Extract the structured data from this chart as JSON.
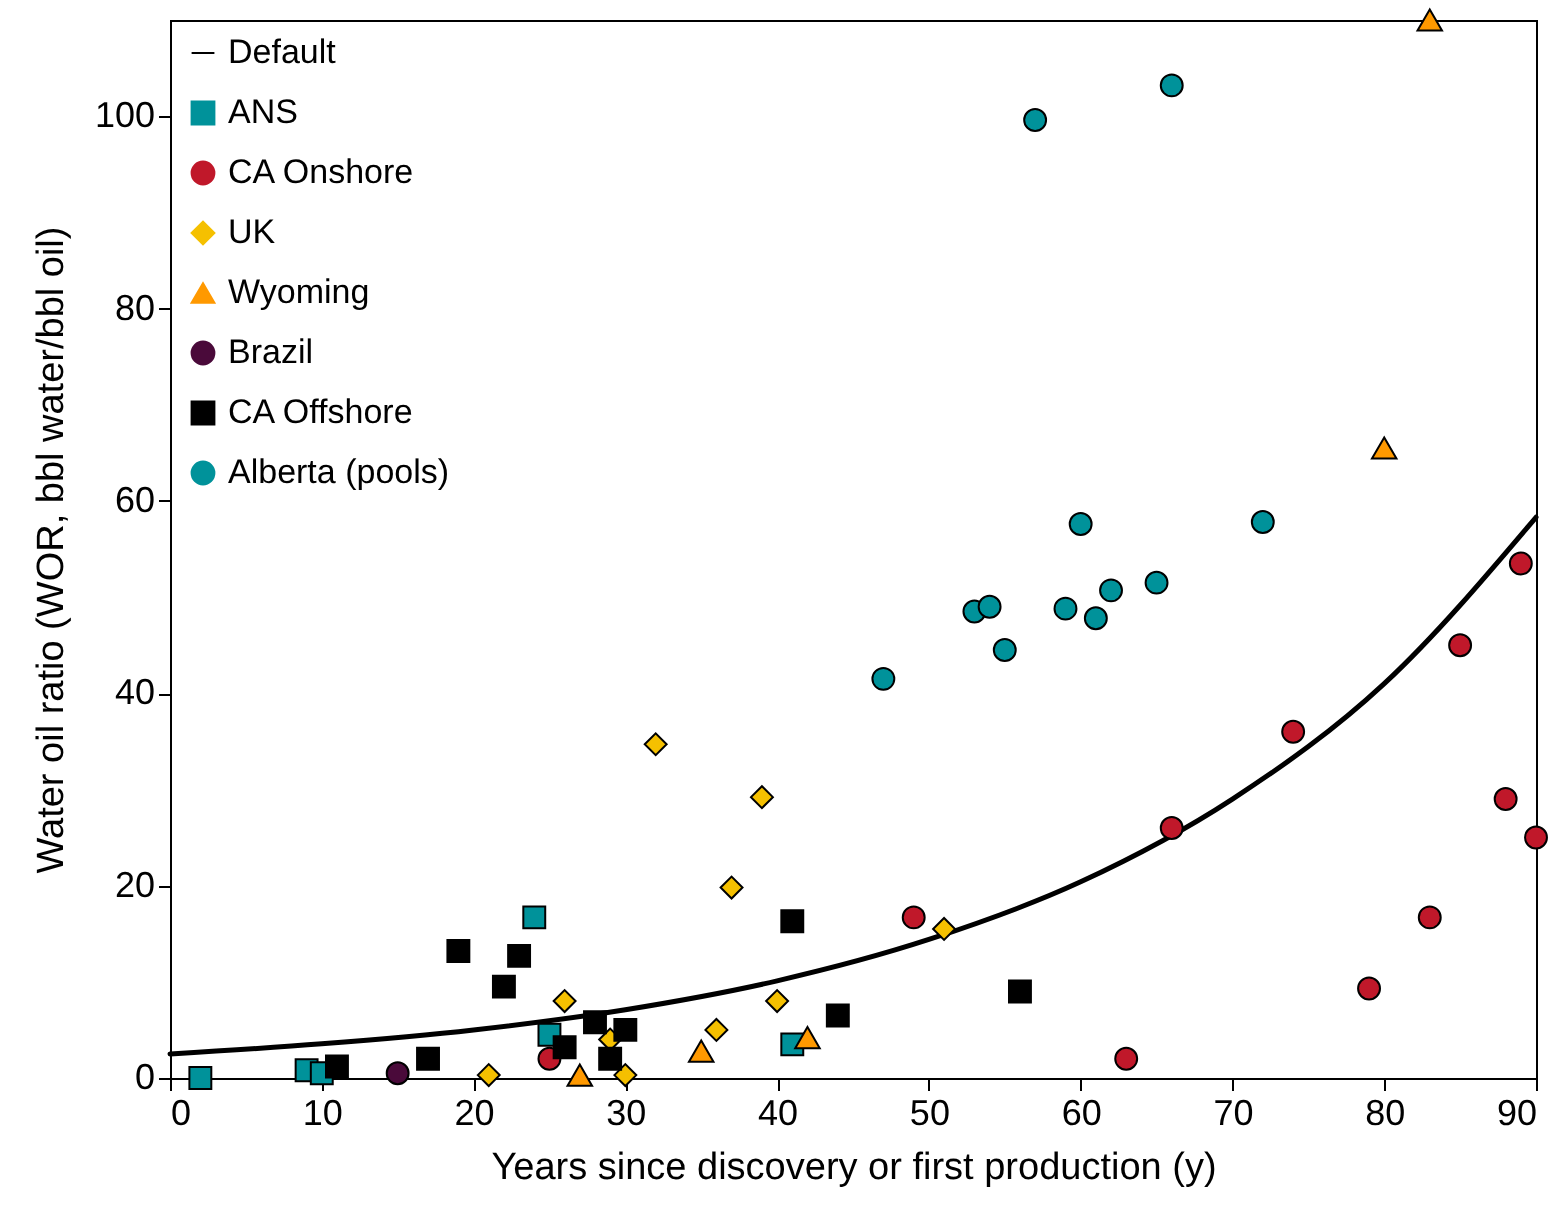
{
  "chart_data": {
    "type": "scatter",
    "xlabel": "Years since discovery or first production (y)",
    "ylabel": "Water oil ratio (WOR, bbl water/bbl oil)",
    "xlim": [
      0,
      90
    ],
    "xticks": [
      0,
      10,
      20,
      30,
      40,
      50,
      60,
      70,
      80,
      90
    ],
    "ylim": [
      0,
      110
    ],
    "yticks": [
      0,
      20,
      40,
      60,
      80,
      100
    ],
    "grid": false,
    "legend": "top left",
    "series": [
      {
        "name": "Default",
        "type": "line",
        "color": "#000000",
        "line_style": "solid",
        "marker": "none",
        "x": [
          0,
          10,
          20,
          30,
          40,
          50,
          60,
          70,
          80,
          90
        ],
        "values": [
          2.5,
          3.55,
          5.0,
          7.1,
          10.1,
          14.4,
          20.4,
          29,
          41,
          58.3
        ]
      },
      {
        "name": "ANS",
        "color": "#00929a",
        "marker": "square",
        "x": [
          2,
          9,
          10,
          24,
          25,
          41
        ],
        "values": [
          0,
          0.8,
          0.5,
          16.7,
          4.5,
          3.5
        ]
      },
      {
        "name": "CA Onshore",
        "color": "#c0182a",
        "marker": "circle",
        "x": [
          25,
          49,
          63,
          66,
          74,
          79,
          83,
          85,
          88,
          89,
          90
        ],
        "values": [
          2,
          16.7,
          2,
          26,
          36,
          9.3,
          16.7,
          45,
          29,
          53.5,
          25
        ]
      },
      {
        "name": "UK",
        "color": "#f5c000",
        "marker": "diamond",
        "x": [
          21,
          26,
          29,
          30,
          32,
          36,
          37,
          39,
          40,
          51
        ],
        "values": [
          0.3,
          8,
          4,
          0.3,
          34.7,
          5,
          19.8,
          29.2,
          8,
          15.5
        ]
      },
      {
        "name": "Wyoming",
        "color": "#ff9900",
        "marker": "triangle",
        "x": [
          27,
          35,
          42,
          80,
          83
        ],
        "values": [
          0.3,
          2.8,
          4.2,
          65.5,
          110
        ]
      },
      {
        "name": "Brazil",
        "color": "#4a0a3a",
        "marker": "circle",
        "x": [
          15
        ],
        "values": [
          0.5
        ]
      },
      {
        "name": "CA Offshore",
        "color": "#000000",
        "marker": "square",
        "x": [
          11,
          17,
          19,
          22,
          23,
          26,
          28,
          29,
          30,
          41,
          44,
          56
        ],
        "values": [
          1.2,
          2,
          13.2,
          9.5,
          12.7,
          3.2,
          5.8,
          2,
          5,
          16.3,
          6.5,
          9
        ]
      },
      {
        "name": "Alberta (pools)",
        "color": "#00929a",
        "marker": "circle",
        "x": [
          47,
          53,
          54,
          55,
          57,
          59,
          60,
          61,
          62,
          65,
          66,
          72
        ],
        "values": [
          41.5,
          48.5,
          49,
          44.5,
          99.6,
          48.8,
          57.6,
          47.8,
          50.7,
          51.5,
          103.2,
          57.8
        ]
      }
    ]
  }
}
